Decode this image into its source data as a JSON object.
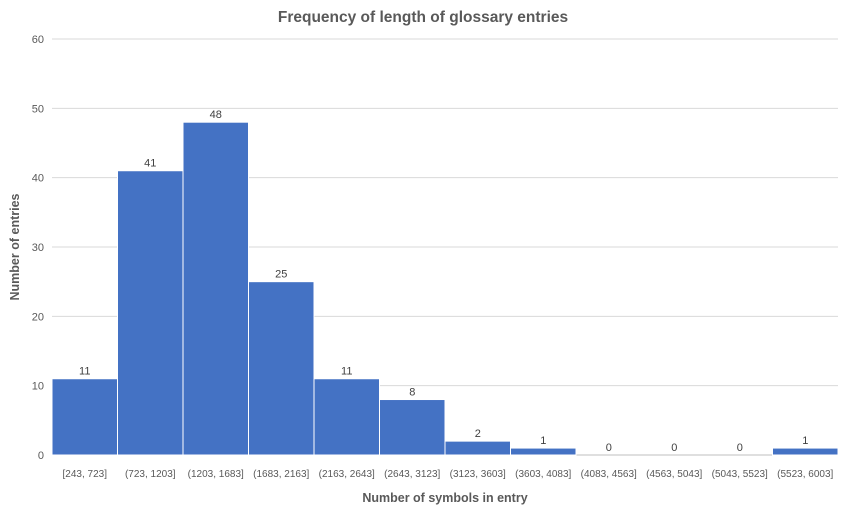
{
  "chart_data": {
    "type": "bar",
    "title": "Frequency of length of glossary entries",
    "xlabel": "Number of symbols in entry",
    "ylabel": "Number of entries",
    "categories": [
      "[243, 723]",
      "(723, 1203]",
      "(1203, 1683]",
      "(1683, 2163]",
      "(2163, 2643]",
      "(2643, 3123]",
      "(3123, 3603]",
      "(3603, 4083]",
      "(4083, 4563]",
      "(4563, 5043]",
      "(5043, 5523]",
      "(5523, 6003]"
    ],
    "values": [
      11,
      41,
      48,
      25,
      11,
      8,
      2,
      1,
      0,
      0,
      0,
      1
    ],
    "ylim": [
      0,
      60
    ],
    "yticks": [
      0,
      10,
      20,
      30,
      40,
      50,
      60
    ],
    "grid": true,
    "legend": "none",
    "data_labels": true,
    "colors": {
      "bar": "#4472c4",
      "bar_edge": "#ffffff",
      "grid": "#d9d9d9",
      "text": "#595959"
    }
  }
}
